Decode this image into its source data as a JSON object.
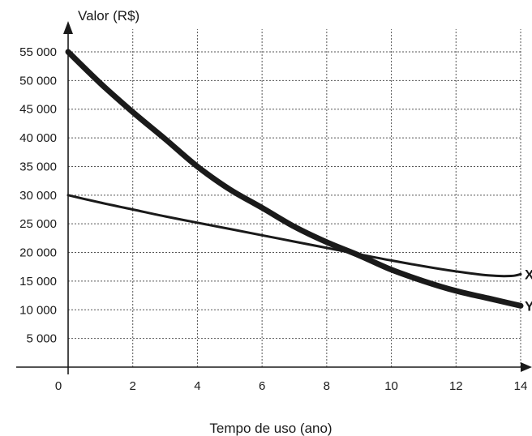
{
  "chart_data": {
    "type": "line",
    "xlabel": "Tempo de uso (ano)",
    "ylabel": "Valor (R$)",
    "origin_label": "0",
    "xlim": [
      0,
      14
    ],
    "ylim": [
      0,
      55000
    ],
    "x_ticks": [
      {
        "value": 2,
        "label": "2"
      },
      {
        "value": 4,
        "label": "4"
      },
      {
        "value": 6,
        "label": "6"
      },
      {
        "value": 8,
        "label": "8"
      },
      {
        "value": 10,
        "label": "10"
      },
      {
        "value": 12,
        "label": "12"
      },
      {
        "value": 14,
        "label": "14"
      }
    ],
    "y_ticks": [
      {
        "value": 5000,
        "label": "5 000"
      },
      {
        "value": 10000,
        "label": "10 000"
      },
      {
        "value": 15000,
        "label": "15 000"
      },
      {
        "value": 20000,
        "label": "20 000"
      },
      {
        "value": 25000,
        "label": "25 000"
      },
      {
        "value": 30000,
        "label": "30 000"
      },
      {
        "value": 35000,
        "label": "35 000"
      },
      {
        "value": 40000,
        "label": "40 000"
      },
      {
        "value": 45000,
        "label": "45 000"
      },
      {
        "value": 50000,
        "label": "50 000"
      },
      {
        "value": 55000,
        "label": "55 000"
      }
    ],
    "grid": true,
    "series": [
      {
        "name": "X",
        "color": "#1a1a1a",
        "points": [
          [
            0,
            30000
          ],
          [
            1,
            28700
          ],
          [
            2,
            27500
          ],
          [
            3,
            26300
          ],
          [
            4,
            25200
          ],
          [
            5,
            24100
          ],
          [
            6,
            23000
          ],
          [
            7,
            21900
          ],
          [
            8,
            20800
          ],
          [
            9,
            19700
          ],
          [
            10,
            18600
          ],
          [
            11,
            17600
          ],
          [
            12,
            16700
          ],
          [
            13,
            16000
          ],
          [
            13.7,
            15900
          ],
          [
            14,
            16200
          ]
        ]
      },
      {
        "name": "Y",
        "color": "#1a1a1a",
        "points": [
          [
            0,
            55000
          ],
          [
            1,
            49500
          ],
          [
            2,
            44500
          ],
          [
            3,
            39800
          ],
          [
            4,
            35000
          ],
          [
            5,
            31000
          ],
          [
            6,
            27800
          ],
          [
            7,
            24500
          ],
          [
            8,
            21800
          ],
          [
            9,
            19500
          ],
          [
            10,
            17000
          ],
          [
            11,
            15000
          ],
          [
            12,
            13300
          ],
          [
            13,
            12000
          ],
          [
            14,
            10700
          ]
        ]
      }
    ]
  }
}
